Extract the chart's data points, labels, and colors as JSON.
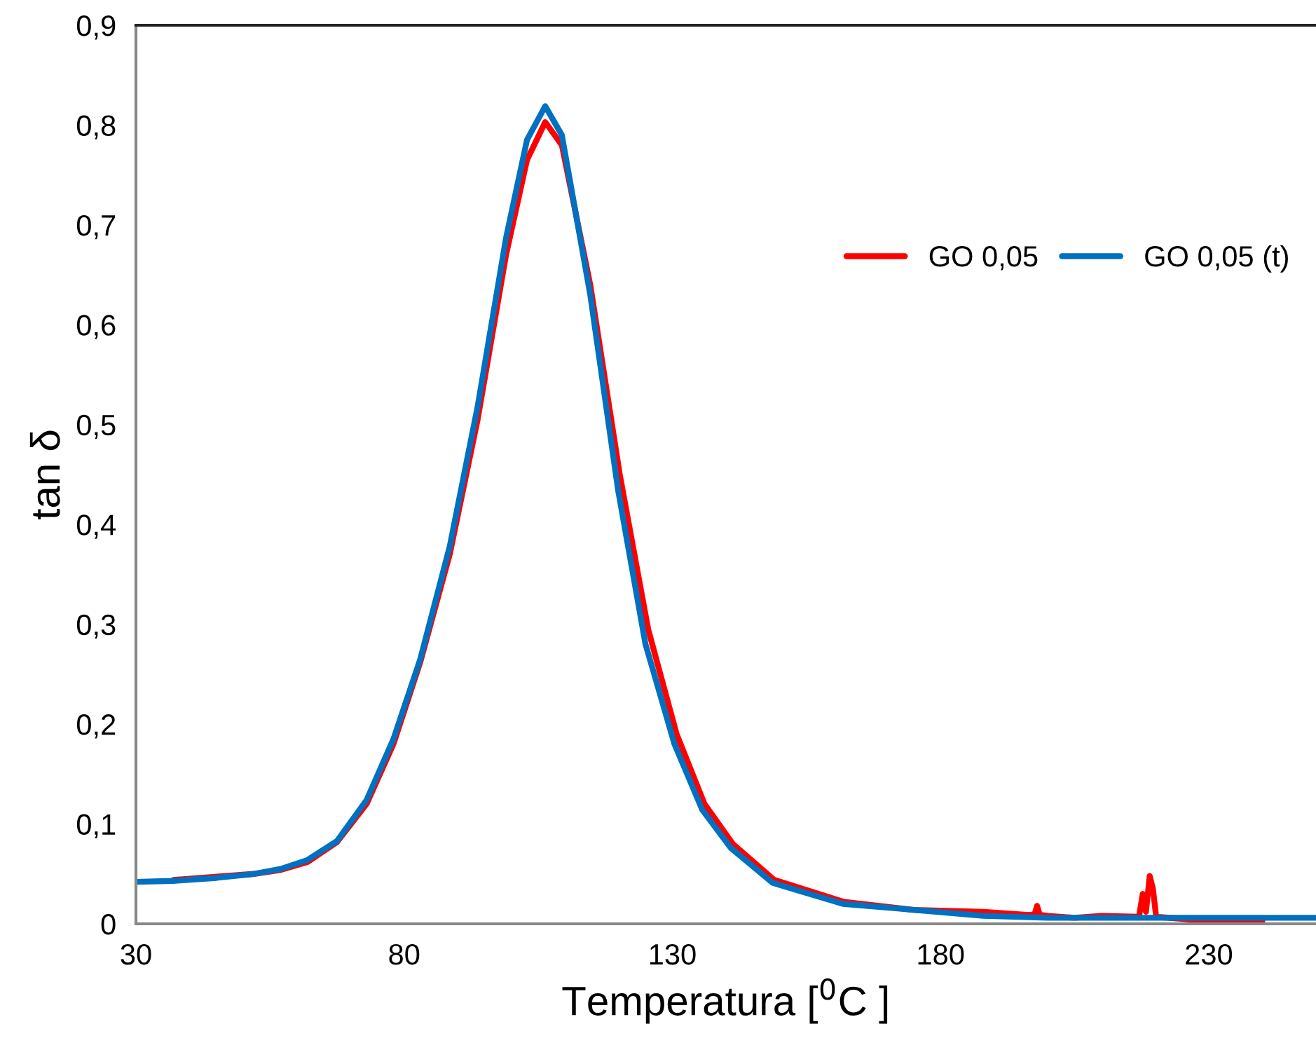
{
  "chart_data": {
    "type": "line",
    "xlabel": "Temperatura [$^{0}$C ]",
    "ylabel": "tan δ",
    "xlim": [
      30,
      250
    ],
    "ylim": [
      0,
      0.9
    ],
    "xticks": [
      30,
      80,
      130,
      180,
      230
    ],
    "yticks": [
      0,
      {
        "value": 0.1,
        "label": "0,1"
      },
      {
        "value": 0.2,
        "label": "0,2"
      },
      {
        "value": 0.3,
        "label": "0,3"
      },
      {
        "value": 0.4,
        "label": "0,4"
      },
      {
        "value": 0.5,
        "label": "0,5"
      },
      {
        "value": 0.6,
        "label": "0,6"
      },
      {
        "value": 0.7,
        "label": "0,7"
      },
      {
        "value": 0.8,
        "label": "0,8"
      },
      {
        "value": 0.9,
        "label": "0,9"
      }
    ],
    "grid": false,
    "legend": "right",
    "line_style": "solid",
    "marker": "none",
    "series": [
      {
        "name": "GO 0,05",
        "color": "#ff0000",
        "x": [
          37,
          52,
          57,
          62,
          67.5,
          73,
          78,
          83,
          88.5,
          93.7,
          99,
          102.9,
          106.3,
          109.4,
          114.7,
          120.2,
          125.5,
          130.8,
          136,
          141.3,
          149,
          162,
          175,
          188,
          196,
          197.5,
          198,
          198.5,
          200,
          205,
          210,
          217,
          217.7,
          218.3,
          219,
          219.6,
          220.2,
          230,
          240
        ],
        "values": [
          0.044,
          0.05,
          0.054,
          0.062,
          0.082,
          0.12,
          0.18,
          0.262,
          0.37,
          0.505,
          0.67,
          0.765,
          0.803,
          0.78,
          0.64,
          0.45,
          0.295,
          0.19,
          0.12,
          0.08,
          0.044,
          0.022,
          0.014,
          0.012,
          0.009,
          0.009,
          0.018,
          0.009,
          0.008,
          0.006,
          0.008,
          0.007,
          0.03,
          0.012,
          0.048,
          0.035,
          0.007,
          0.003,
          0.003
        ]
      },
      {
        "name": "GO 0,05 (t)",
        "color": "#0070c0",
        "x": [
          30,
          37,
          45,
          52,
          57,
          62,
          67.5,
          73,
          78,
          83,
          88.5,
          93.7,
          99,
          102.9,
          106.3,
          109.4,
          114.7,
          119.9,
          125,
          130.4,
          135.6,
          140.9,
          148.7,
          161.8,
          175,
          188,
          200,
          214,
          230,
          250
        ],
        "values": [
          0.042,
          0.043,
          0.046,
          0.05,
          0.055,
          0.064,
          0.083,
          0.124,
          0.185,
          0.265,
          0.378,
          0.518,
          0.687,
          0.785,
          0.819,
          0.79,
          0.63,
          0.434,
          0.28,
          0.18,
          0.114,
          0.076,
          0.041,
          0.02,
          0.014,
          0.008,
          0.006,
          0.006,
          0.006,
          0.006
        ]
      }
    ]
  }
}
